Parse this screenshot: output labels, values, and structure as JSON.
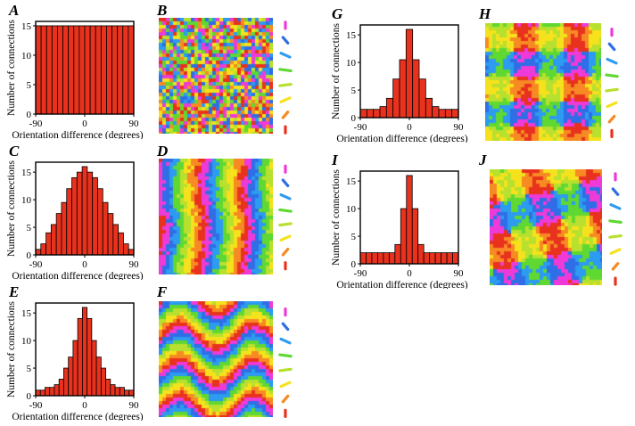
{
  "figure": {
    "letters": [
      "A",
      "B",
      "C",
      "D",
      "E",
      "F",
      "G",
      "H",
      "I",
      "J"
    ]
  },
  "chart_data": [
    {
      "panel": "A",
      "type": "bar",
      "xlabel": "Orientation difference (degrees)",
      "ylabel": "Number of connections",
      "xlim": [
        -90,
        90
      ],
      "ylim": [
        0,
        15
      ],
      "x_ticks": [
        "-90",
        "0",
        "90"
      ],
      "y_ticks": [
        "0",
        "5",
        "10",
        "15"
      ],
      "bar_color": "#e8321e",
      "values": [
        15,
        15,
        15,
        15,
        15,
        15,
        15,
        15,
        15,
        15,
        15,
        15,
        15,
        15,
        15,
        15,
        15,
        15
      ]
    },
    {
      "panel": "C",
      "type": "bar",
      "xlabel": "Orientation difference (degrees)",
      "ylabel": "Number of connections",
      "xlim": [
        -90,
        90
      ],
      "ylim": [
        0,
        16
      ],
      "x_ticks": [
        "-90",
        "0",
        "90"
      ],
      "y_ticks": [
        "0",
        "5",
        "10",
        "15"
      ],
      "bar_color": "#e8321e",
      "values": [
        1,
        2,
        4,
        5.5,
        7.5,
        9.5,
        12,
        14,
        15,
        16,
        15,
        14,
        12,
        9.5,
        7.5,
        5.5,
        4,
        2,
        1
      ]
    },
    {
      "panel": "E",
      "type": "bar",
      "xlabel": "Orientation difference (degrees)",
      "ylabel": "Number of connections",
      "xlim": [
        -90,
        90
      ],
      "ylim": [
        0,
        16
      ],
      "x_ticks": [
        "-90",
        "0",
        "90"
      ],
      "y_ticks": [
        "0",
        "5",
        "10",
        "15"
      ],
      "bar_color": "#e8321e",
      "values": [
        1,
        1,
        1.5,
        1.5,
        2,
        3,
        5,
        7,
        10,
        14,
        16,
        14,
        10,
        7,
        5,
        3,
        2,
        1.5,
        1.5,
        1,
        1
      ]
    },
    {
      "panel": "G",
      "type": "bar",
      "xlabel": "Orientation difference (degrees)",
      "ylabel": "Number of connections",
      "xlim": [
        -90,
        90
      ],
      "ylim": [
        0,
        16
      ],
      "x_ticks": [
        "-90",
        "0",
        "90"
      ],
      "y_ticks": [
        "0",
        "5",
        "10",
        "15"
      ],
      "bar_color": "#e8321e",
      "values": [
        1.5,
        1.5,
        1.5,
        2,
        3.5,
        7,
        10.5,
        16,
        10.5,
        7,
        3.5,
        2,
        1.5,
        1.5,
        1.5
      ]
    },
    {
      "panel": "I",
      "type": "bar",
      "xlabel": "Orientation difference (degrees)",
      "ylabel": "Number of connections",
      "xlim": [
        -90,
        90
      ],
      "ylim": [
        0,
        16
      ],
      "x_ticks": [
        "-90",
        "0",
        "90"
      ],
      "y_ticks": [
        "0",
        "5",
        "10",
        "15"
      ],
      "bar_color": "#e8321e",
      "values": [
        2,
        2,
        2,
        2,
        2,
        2,
        3.5,
        10,
        16,
        10,
        3.5,
        2,
        2,
        2,
        2,
        2,
        2
      ]
    }
  ],
  "maps": [
    {
      "panel": "B",
      "pattern": "random"
    },
    {
      "panel": "D",
      "pattern": "stripes"
    },
    {
      "panel": "F",
      "pattern": "waves"
    },
    {
      "panel": "H",
      "pattern": "checker"
    },
    {
      "panel": "J",
      "pattern": "patches"
    }
  ],
  "legend_colors": [
    "#ee3ad8",
    "#2f6ee6",
    "#2c9bf0",
    "#5fd832",
    "#b8e02e",
    "#f5e21c",
    "#f78a22",
    "#e8321e"
  ]
}
